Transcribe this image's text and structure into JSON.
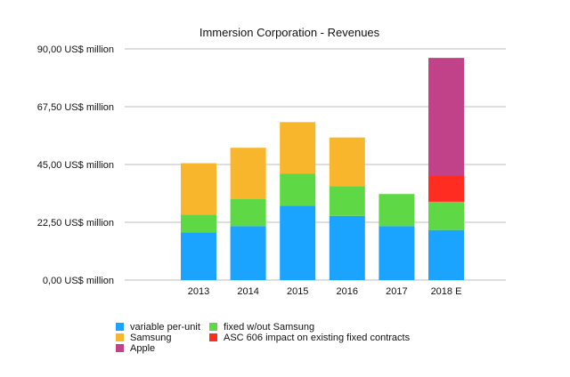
{
  "chart_data": {
    "type": "bar",
    "stacked": true,
    "title": "Immersion Corporation - Revenues",
    "xlabel": "",
    "ylabel": "",
    "categories": [
      "2013",
      "2014",
      "2015",
      "2016",
      "2017",
      "2018 E"
    ],
    "ylim": [
      0,
      90
    ],
    "y_ticks": [
      0,
      22.5,
      45,
      67.5,
      90
    ],
    "y_tick_labels": [
      "0,00 US$ million",
      "22,50 US$ million",
      "45,00 US$ million",
      "67,50 US$ million",
      "90,00 US$ million"
    ],
    "grid": "horizontal",
    "legend_position": "bottom",
    "series": [
      {
        "name": "variable per-unit",
        "color": "#1aa3ff",
        "values": [
          18.5,
          21,
          29,
          25,
          21,
          19.5
        ]
      },
      {
        "name": "fixed w/out Samsung",
        "color": "#5fd846",
        "values": [
          7,
          10.5,
          12.5,
          11.5,
          12.5,
          11
        ]
      },
      {
        "name": "Samsung",
        "color": "#f8b62d",
        "values": [
          20,
          20,
          20,
          19,
          0,
          0
        ]
      },
      {
        "name": "ASC 606 impact on existing fixed contracts",
        "color": "#ff2c21",
        "values": [
          0,
          0,
          0,
          0,
          0,
          10
        ]
      },
      {
        "name": "Apple",
        "color": "#c2428a",
        "values": [
          0,
          0,
          0,
          0,
          0,
          46
        ]
      }
    ],
    "legend": [
      {
        "series": 0,
        "col": 0,
        "row": 0
      },
      {
        "series": 1,
        "col": 1,
        "row": 0
      },
      {
        "series": 2,
        "col": 0,
        "row": 1
      },
      {
        "series": 3,
        "col": 1,
        "row": 1
      },
      {
        "series": 4,
        "col": 0,
        "row": 2
      }
    ]
  }
}
